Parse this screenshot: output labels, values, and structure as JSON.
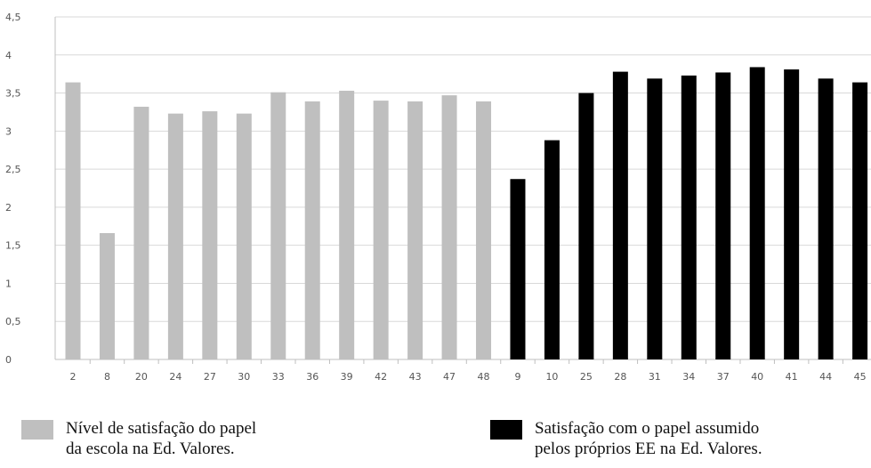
{
  "chart_data": {
    "type": "bar",
    "ylim": [
      0,
      4.5
    ],
    "yticks": [
      "0",
      "0,5",
      "1",
      "1,5",
      "2",
      "2,5",
      "3",
      "3,5",
      "4",
      "4,5"
    ],
    "grid": true,
    "legend_position": "bottom",
    "series": [
      {
        "color": "#bfbfbf",
        "categories": [
          "2",
          "8",
          "20",
          "24",
          "27",
          "30",
          "33",
          "36",
          "39",
          "42",
          "43",
          "47",
          "48"
        ],
        "values": [
          3.64,
          1.66,
          3.32,
          3.23,
          3.26,
          3.23,
          3.51,
          3.39,
          3.53,
          3.4,
          3.39,
          3.47,
          3.39
        ],
        "legend_lines": [
          "Nível de satisfação do papel",
          "da escola na Ed. Valores."
        ]
      },
      {
        "color": "#000000",
        "categories": [
          "9",
          "10",
          "25",
          "28",
          "31",
          "34",
          "37",
          "40",
          "41",
          "44",
          "45"
        ],
        "values": [
          2.37,
          2.88,
          3.5,
          3.78,
          3.69,
          3.73,
          3.77,
          3.84,
          3.81,
          3.69,
          3.64
        ],
        "legend_lines": [
          "Satisfação com o papel assumido",
          "pelos próprios EE na Ed. Valores."
        ]
      }
    ]
  }
}
